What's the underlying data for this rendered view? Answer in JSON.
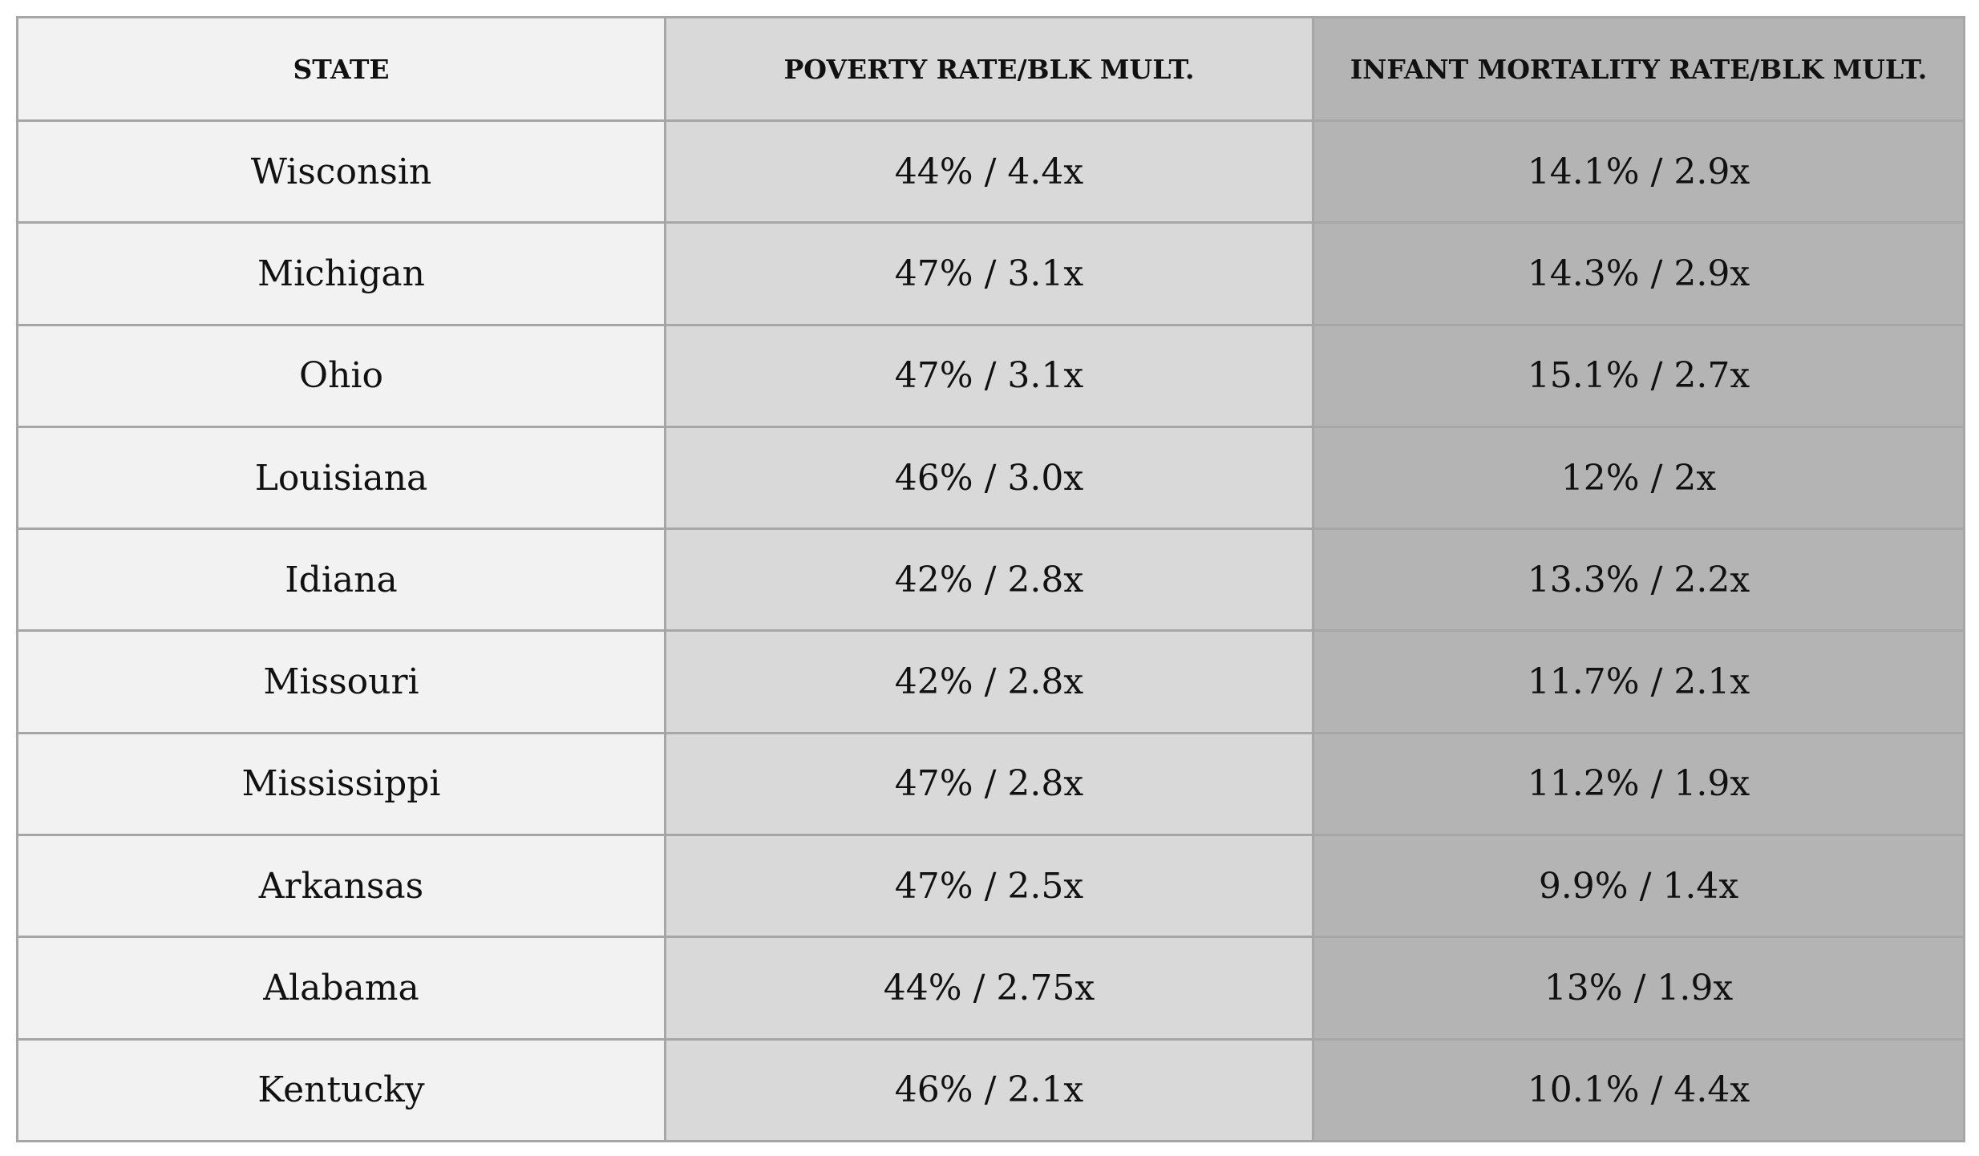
{
  "table": {
    "headers": [
      "STATE",
      "POVERTY RATE/BLK MULT.",
      "INFANT MORTALITY RATE/BLK MULT."
    ],
    "rows": [
      [
        "Wisconsin",
        "44% / 4.4x",
        "14.1% / 2.9x"
      ],
      [
        "Michigan",
        "47% / 3.1x",
        "14.3% / 2.9x"
      ],
      [
        "Ohio",
        "47% / 3.1x",
        "15.1% / 2.7x"
      ],
      [
        "Louisiana",
        "46% / 3.0x",
        "12% / 2x"
      ],
      [
        "Idiana",
        "42% / 2.8x",
        "13.3% / 2.2x"
      ],
      [
        "Missouri",
        "42% / 2.8x",
        "11.7% / 2.1x"
      ],
      [
        "Mississippi",
        "47% / 2.8x",
        "11.2% / 1.9x"
      ],
      [
        "Arkansas",
        "47% / 2.5x",
        "9.9% / 1.4x"
      ],
      [
        "Alabama",
        "44% / 2.75x",
        "13% / 1.9x"
      ],
      [
        "Kentucky",
        "46% / 2.1x",
        "10.1% / 4.4x"
      ]
    ]
  },
  "colors": {
    "column_state": "#f2f2f2",
    "column_poverty": "#d9d9d9",
    "column_infant_mortality": "#b4b4b4",
    "border": "#a6a6a6"
  }
}
